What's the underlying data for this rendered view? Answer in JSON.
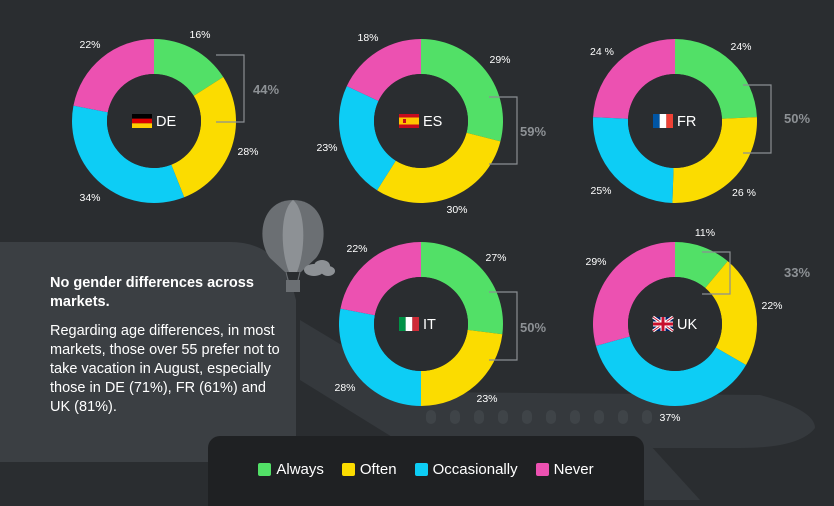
{
  "chart_data": [
    {
      "type": "pie",
      "country": "DE",
      "flag": "de",
      "labels": [
        "Always",
        "Often",
        "Occasionally",
        "Never"
      ],
      "values": [
        16,
        28,
        34,
        22
      ],
      "value_labels": [
        "16%",
        "28%",
        "34%",
        "22%"
      ],
      "bracket_total": "44%"
    },
    {
      "type": "pie",
      "country": "ES",
      "flag": "es",
      "labels": [
        "Always",
        "Often",
        "Occasionally",
        "Never"
      ],
      "values": [
        29,
        30,
        23,
        18
      ],
      "value_labels": [
        "29%",
        "30%",
        "23%",
        "18%"
      ],
      "bracket_total": "59%"
    },
    {
      "type": "pie",
      "country": "FR",
      "flag": "fr",
      "labels": [
        "Always",
        "Often",
        "Occasionally",
        "Never"
      ],
      "values": [
        24,
        26,
        25,
        24
      ],
      "value_labels": [
        "24%",
        "26 %",
        "25%",
        "24 %"
      ],
      "bracket_total": "50%"
    },
    {
      "type": "pie",
      "country": "IT",
      "flag": "it",
      "labels": [
        "Always",
        "Often",
        "Occasionally",
        "Never"
      ],
      "values": [
        27,
        23,
        28,
        22
      ],
      "value_labels": [
        "27%",
        "23%",
        "28%",
        "22%"
      ],
      "bracket_total": "50%"
    },
    {
      "type": "pie",
      "country": "UK",
      "flag": "uk",
      "labels": [
        "Always",
        "Often",
        "Occasionally",
        "Never"
      ],
      "values": [
        11,
        22,
        37,
        29
      ],
      "value_labels": [
        "11%",
        "22%",
        "37%",
        "29%"
      ],
      "bracket_total": "33%"
    }
  ],
  "legend": [
    {
      "label": "Always",
      "color": "#52e067"
    },
    {
      "label": "Often",
      "color": "#fbdc00"
    },
    {
      "label": "Occasionally",
      "color": "#0dcdf5"
    },
    {
      "label": "Never",
      "color": "#ec51b1"
    }
  ],
  "notes": {
    "heading": "No gender differences across markets.",
    "body": "Regarding age differences, in most markets, those over 55 prefer not to take vacation in August, especially those in DE (71%), FR (61%) and UK (81%)."
  }
}
